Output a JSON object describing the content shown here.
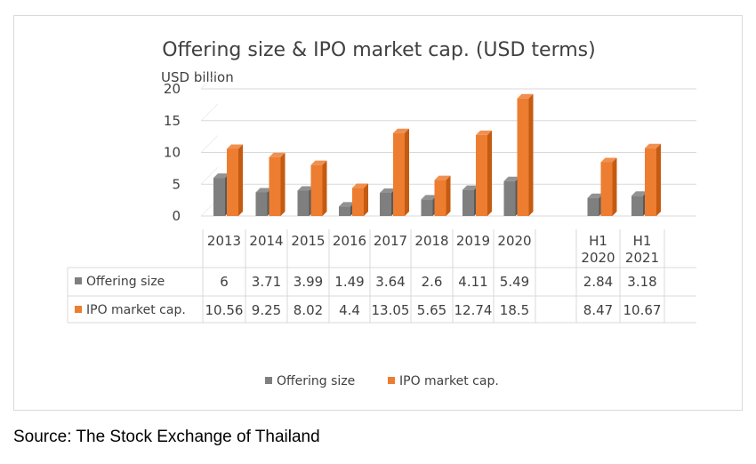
{
  "chart_data": {
    "type": "bar",
    "title": "Offering size & IPO market cap. (USD terms)",
    "ylabel": "USD billion",
    "xlabel": "",
    "ylim": [
      0,
      20
    ],
    "yticks": [
      0,
      5,
      10,
      15,
      20
    ],
    "grid": true,
    "legend_position": "bottom",
    "categories": [
      "2013",
      "2014",
      "2015",
      "2016",
      "2017",
      "2018",
      "2019",
      "2020",
      "",
      "H1 2020",
      "H1 2021"
    ],
    "series": [
      {
        "name": "Offering size",
        "color": "#7f7f7f",
        "values": [
          6,
          3.71,
          3.99,
          1.49,
          3.64,
          2.6,
          4.11,
          5.49,
          null,
          2.84,
          3.18
        ],
        "labels": [
          "6",
          "3.71",
          "3.99",
          "1.49",
          "3.64",
          "2.6",
          "4.11",
          "5.49",
          "",
          "2.84",
          "3.18"
        ]
      },
      {
        "name": "IPO market cap.",
        "color": "#ed7d31",
        "values": [
          10.56,
          9.25,
          8.02,
          4.4,
          13.05,
          5.65,
          12.74,
          18.5,
          null,
          8.47,
          10.67
        ],
        "labels": [
          "10.56",
          "9.25",
          "8.02",
          "4.4",
          "13.05",
          "5.65",
          "12.74",
          "18.5",
          "",
          "8.47",
          "10.67"
        ]
      }
    ]
  },
  "source": "Source: The Stock Exchange of Thailand"
}
